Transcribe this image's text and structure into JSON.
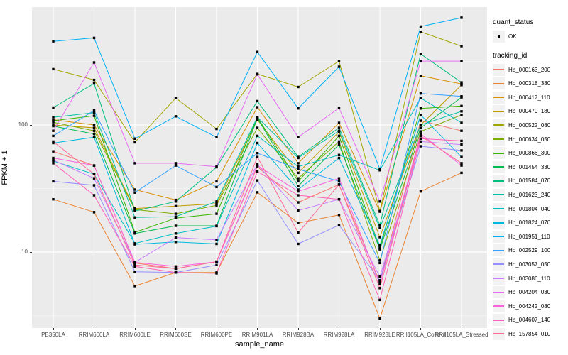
{
  "legend": {
    "quant_status_title": "quant_status",
    "quant_status_value": "OK",
    "tracking_id_title": "tracking_id"
  },
  "chart_data": {
    "type": "line",
    "title": "",
    "xlabel": "sample_name",
    "ylabel": "FPKM + 1",
    "y_scale": "log10",
    "legend_position": "right",
    "grid": "on",
    "panel_bg": "#EBEBEB",
    "gridline_color": "#FFFFFF",
    "point_color": "#000000",
    "point_shape": "square",
    "quant_status": "OK",
    "y_ticks": [
      {
        "value": 10,
        "label": "10"
      },
      {
        "value": 100,
        "label": "100"
      }
    ],
    "y_minor_gridlines": [
      3.162,
      31.62,
      316.2
    ],
    "y_domain_approx": [
      2.5,
      845
    ],
    "categories": [
      "PB350LA",
      "RRIM600LA",
      "RRIM600LE",
      "RRIM600SE",
      "RRIM600PE",
      "RRIM901LA",
      "RRIM928BA",
      "RRIM928LA",
      "RRIM928LE",
      "RRII105LA_Control",
      "RRII105LA_Stressed"
    ],
    "series": [
      {
        "name": "Hb_000163_200",
        "color": "#F8766D",
        "values": [
          62,
          48,
          8.2,
          7.4,
          8.4,
          47,
          24.6,
          34,
          5.8,
          108,
          90
        ]
      },
      {
        "name": "Hb_000318_380",
        "color": "#EA8331",
        "values": [
          26,
          20.6,
          5.4,
          6.9,
          6.9,
          29.5,
          16.9,
          19.6,
          3,
          30,
          42
        ]
      },
      {
        "name": "Hb_000417_110",
        "color": "#D89000",
        "values": [
          110,
          100,
          31,
          25.7,
          36,
          138,
          50,
          104,
          20.8,
          244,
          210
        ]
      },
      {
        "name": "Hb_000479_180",
        "color": "#C09B00",
        "values": [
          100,
          95,
          22,
          23,
          24,
          110,
          42,
          88,
          13.1,
          100,
          206
        ]
      },
      {
        "name": "Hb_000522_080",
        "color": "#A3A500",
        "values": [
          275,
          226,
          73,
          163,
          93,
          252,
          199,
          318,
          21,
          541,
          417
        ]
      },
      {
        "name": "Hb_000634_050",
        "color": "#7CAE00",
        "values": [
          105,
          90,
          21.6,
          20,
          23.3,
          95,
          38,
          74,
          8.6,
          89,
          120
        ]
      },
      {
        "name": "Hb_000866_300",
        "color": "#39B600",
        "values": [
          108,
          118,
          14.3,
          18.5,
          20,
          115,
          36,
          82,
          10.8,
          135,
          141
        ]
      },
      {
        "name": "Hb_001454_330",
        "color": "#00BB4E",
        "values": [
          98,
          85,
          14,
          16.1,
          16.1,
          113,
          33,
          70,
          10.5,
          95,
          165
        ]
      },
      {
        "name": "Hb_001584_070",
        "color": "#00BF7D",
        "values": [
          137,
          212,
          21,
          25,
          46.5,
          154,
          56,
          95,
          16.3,
          362,
          216
        ]
      },
      {
        "name": "Hb_001623_240",
        "color": "#00C1A3",
        "values": [
          115,
          125,
          18.7,
          19,
          25,
          115,
          55,
          90,
          15.5,
          100,
          128
        ]
      },
      {
        "name": "Hb_001804_040",
        "color": "#00BFC4",
        "values": [
          52,
          41,
          11.7,
          14,
          16,
          82,
          47,
          58,
          44,
          163,
          104
        ]
      },
      {
        "name": "Hb_001824_070",
        "color": "#00BAE0",
        "values": [
          72,
          80,
          11.5,
          12,
          11.6,
          72,
          31,
          55,
          11.3,
          120,
          56
        ]
      },
      {
        "name": "Hb_001951_110",
        "color": "#00B0F6",
        "values": [
          455,
          484,
          78,
          117,
          80,
          375,
          135,
          287,
          45,
          595,
          698
        ]
      },
      {
        "name": "Hb_002529_100",
        "color": "#35A2FF",
        "values": [
          82,
          130,
          29.4,
          48,
          32.5,
          60,
          45,
          36,
          8.2,
          177,
          168
        ]
      },
      {
        "name": "Hb_003057_050",
        "color": "#9590FF",
        "values": [
          36,
          33.5,
          7,
          6.9,
          7.9,
          36.6,
          11.6,
          16.3,
          6,
          68,
          63
        ]
      },
      {
        "name": "Hb_003086_110",
        "color": "#C77CFF",
        "values": [
          53,
          38,
          8.3,
          13,
          12.5,
          49,
          21.2,
          26,
          6.4,
          74,
          70
        ]
      },
      {
        "name": "Hb_004204_030",
        "color": "#E76BF3",
        "values": [
          90,
          310,
          50,
          50,
          47,
          250,
          80,
          136,
          25,
          318,
          318
        ]
      },
      {
        "name": "Hb_004242_080",
        "color": "#FA62DB",
        "values": [
          55,
          48,
          8.3,
          7.7,
          8.4,
          48,
          30,
          38,
          5.6,
          85,
          48
        ]
      },
      {
        "name": "Hb_004607_140",
        "color": "#FF62BC",
        "values": [
          50,
          28,
          7.7,
          6.9,
          6.8,
          43,
          28,
          26,
          4.2,
          78,
          75
        ]
      },
      {
        "name": "Hb_157854_010",
        "color": "#FF6A98",
        "values": [
          74,
          41,
          7.9,
          7.4,
          8.4,
          56,
          14.2,
          34,
          5.2,
          82,
          50
        ]
      }
    ]
  }
}
